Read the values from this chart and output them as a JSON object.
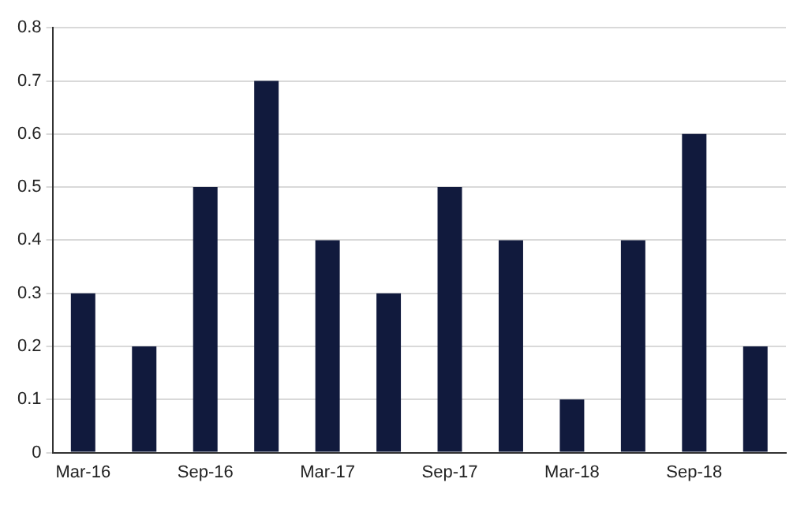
{
  "chart_data": {
    "type": "bar",
    "categories": [
      "Mar-16",
      null,
      "Sep-16",
      null,
      "Mar-17",
      null,
      "Sep-17",
      null,
      "Mar-18",
      null,
      "Sep-18",
      null
    ],
    "values": [
      0.3,
      0.2,
      0.5,
      0.7,
      0.4,
      0.3,
      0.5,
      0.4,
      0.1,
      0.4,
      0.6,
      0.2
    ],
    "color": "#111a3d",
    "ylim": [
      0,
      0.8
    ],
    "yticks": [
      0,
      0.1,
      0.2,
      0.3,
      0.4,
      0.5,
      0.6,
      0.7,
      0.8
    ],
    "grid": "y",
    "legend": false
  }
}
